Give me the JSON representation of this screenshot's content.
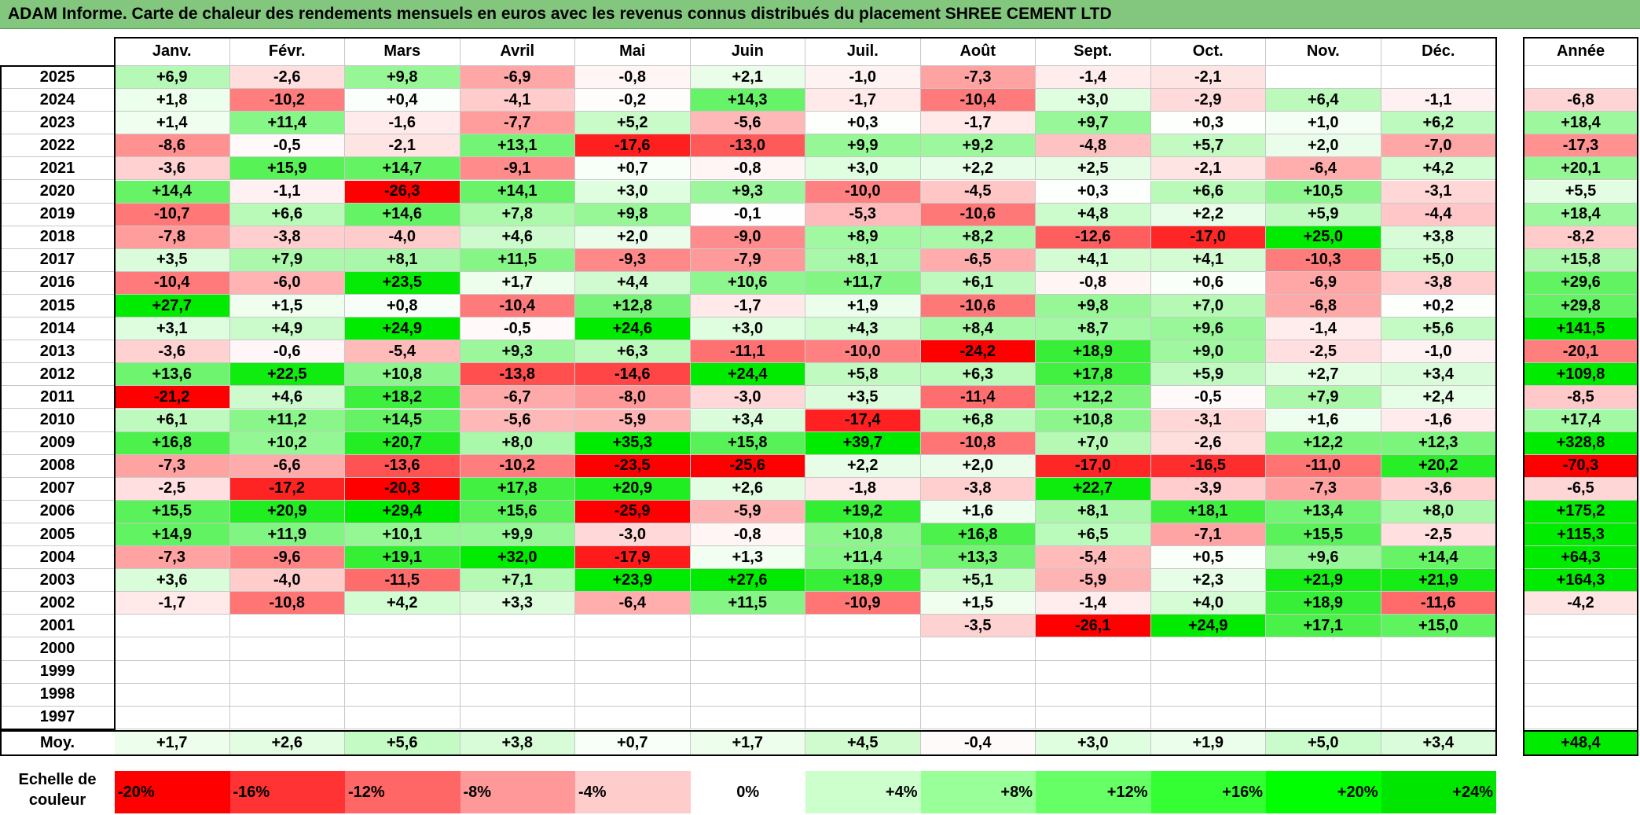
{
  "title": "ADAM Informe. Carte de chaleur des rendements mensuels en euros avec les revenus connus distribués du placement SHREE CEMENT LTD",
  "chart_data": {
    "type": "heatmap",
    "title": "ADAM Informe. Carte de chaleur des rendements mensuels en euros avec les revenus connus distribués du placement SHREE CEMENT LTD",
    "columns": [
      "Janv.",
      "Févr.",
      "Mars",
      "Avril",
      "Mai",
      "Juin",
      "Juil.",
      "Août",
      "Sept.",
      "Oct.",
      "Nov.",
      "Déc."
    ],
    "year_column_label": "Année",
    "rows": [
      {
        "year": "2025",
        "values": [
          "+6,9",
          "-2,6",
          "+9,8",
          "-6,9",
          "-0,8",
          "+2,1",
          "-1,0",
          "-7,3",
          "-1,4",
          "-2,1",
          "",
          ""
        ],
        "annual": ""
      },
      {
        "year": "2024",
        "values": [
          "+1,8",
          "-10,2",
          "+0,4",
          "-4,1",
          "-0,2",
          "+14,3",
          "-1,7",
          "-10,4",
          "+3,0",
          "-2,9",
          "+6,4",
          "-1,1"
        ],
        "annual": "-6,8"
      },
      {
        "year": "2023",
        "values": [
          "+1,4",
          "+11,4",
          "-1,6",
          "-7,7",
          "+5,2",
          "-5,6",
          "+0,3",
          "-1,7",
          "+9,7",
          "+0,3",
          "+1,0",
          "+6,2"
        ],
        "annual": "+18,4"
      },
      {
        "year": "2022",
        "values": [
          "-8,6",
          "-0,5",
          "-2,1",
          "+13,1",
          "-17,6",
          "-13,0",
          "+9,9",
          "+9,2",
          "-4,8",
          "+5,7",
          "+2,0",
          "-7,0"
        ],
        "annual": "-17,3"
      },
      {
        "year": "2021",
        "values": [
          "-3,6",
          "+15,9",
          "+14,7",
          "-9,1",
          "+0,7",
          "-0,8",
          "+3,0",
          "+2,2",
          "+2,5",
          "-2,1",
          "-6,4",
          "+4,2"
        ],
        "annual": "+20,1"
      },
      {
        "year": "2020",
        "values": [
          "+14,4",
          "-1,1",
          "-26,3",
          "+14,1",
          "+3,0",
          "+9,3",
          "-10,0",
          "-4,5",
          "+0,3",
          "+6,6",
          "+10,5",
          "-3,1"
        ],
        "annual": "+5,5"
      },
      {
        "year": "2019",
        "values": [
          "-10,7",
          "+6,6",
          "+14,6",
          "+7,8",
          "+9,8",
          "-0,1",
          "-5,3",
          "-10,6",
          "+4,8",
          "+2,2",
          "+5,9",
          "-4,4"
        ],
        "annual": "+18,4"
      },
      {
        "year": "2018",
        "values": [
          "-7,8",
          "-3,8",
          "-4,0",
          "+4,6",
          "+2,0",
          "-9,0",
          "+8,9",
          "+8,2",
          "-12,6",
          "-17,0",
          "+25,0",
          "+3,8"
        ],
        "annual": "-8,2"
      },
      {
        "year": "2017",
        "values": [
          "+3,5",
          "+7,9",
          "+8,1",
          "+11,5",
          "-9,3",
          "-7,9",
          "+8,1",
          "-6,5",
          "+4,1",
          "+4,1",
          "-10,3",
          "+5,0"
        ],
        "annual": "+15,8"
      },
      {
        "year": "2016",
        "values": [
          "-10,4",
          "-6,0",
          "+23,5",
          "+1,7",
          "+4,4",
          "+10,6",
          "+11,7",
          "+6,1",
          "-0,8",
          "+0,6",
          "-6,9",
          "-3,8"
        ],
        "annual": "+29,6"
      },
      {
        "year": "2015",
        "values": [
          "+27,7",
          "+1,5",
          "+0,8",
          "-10,4",
          "+12,8",
          "-1,7",
          "+1,9",
          "-10,6",
          "+9,8",
          "+7,0",
          "-6,8",
          "+0,2"
        ],
        "annual": "+29,8"
      },
      {
        "year": "2014",
        "values": [
          "+3,1",
          "+4,9",
          "+24,9",
          "-0,5",
          "+24,6",
          "+3,0",
          "+4,3",
          "+8,4",
          "+8,7",
          "+9,6",
          "-1,4",
          "+5,6"
        ],
        "annual": "+141,5"
      },
      {
        "year": "2013",
        "values": [
          "-3,6",
          "-0,6",
          "-5,4",
          "+9,3",
          "+6,3",
          "-11,1",
          "-10,0",
          "-24,2",
          "+18,9",
          "+9,0",
          "-2,5",
          "-1,0"
        ],
        "annual": "-20,1"
      },
      {
        "year": "2012",
        "values": [
          "+13,6",
          "+22,5",
          "+10,8",
          "-13,8",
          "-14,6",
          "+24,4",
          "+5,8",
          "+6,3",
          "+17,8",
          "+5,9",
          "+2,7",
          "+3,4"
        ],
        "annual": "+109,8"
      },
      {
        "year": "2011",
        "values": [
          "-21,2",
          "+4,6",
          "+18,2",
          "-6,7",
          "-8,0",
          "-3,0",
          "+3,5",
          "-11,4",
          "+12,2",
          "-0,5",
          "+7,9",
          "+2,4"
        ],
        "annual": "-8,5"
      },
      {
        "year": "2010",
        "values": [
          "+6,1",
          "+11,2",
          "+14,5",
          "-5,6",
          "-5,9",
          "+3,4",
          "-17,4",
          "+6,8",
          "+10,8",
          "-3,1",
          "+1,6",
          "-1,6"
        ],
        "annual": "+17,4"
      },
      {
        "year": "2009",
        "values": [
          "+16,8",
          "+10,2",
          "+20,7",
          "+8,0",
          "+35,3",
          "+15,8",
          "+39,7",
          "-10,8",
          "+7,0",
          "-2,6",
          "+12,2",
          "+12,3"
        ],
        "annual": "+328,8"
      },
      {
        "year": "2008",
        "values": [
          "-7,3",
          "-6,6",
          "-13,6",
          "-10,2",
          "-23,5",
          "-25,6",
          "+2,2",
          "+2,0",
          "-17,0",
          "-16,5",
          "-11,0",
          "+20,2"
        ],
        "annual": "-70,3"
      },
      {
        "year": "2007",
        "values": [
          "-2,5",
          "-17,2",
          "-20,3",
          "+17,8",
          "+20,9",
          "+2,6",
          "-1,8",
          "-3,8",
          "+22,7",
          "-3,9",
          "-7,3",
          "-3,6"
        ],
        "annual": "-6,5"
      },
      {
        "year": "2006",
        "values": [
          "+15,5",
          "+20,9",
          "+29,4",
          "+15,6",
          "-25,9",
          "-5,9",
          "+19,2",
          "+1,6",
          "+8,1",
          "+18,1",
          "+13,4",
          "+8,0"
        ],
        "annual": "+175,2"
      },
      {
        "year": "2005",
        "values": [
          "+14,9",
          "+11,9",
          "+10,1",
          "+9,9",
          "-3,0",
          "-0,8",
          "+10,8",
          "+16,8",
          "+6,5",
          "-7,1",
          "+15,5",
          "-2,5"
        ],
        "annual": "+115,3"
      },
      {
        "year": "2004",
        "values": [
          "-7,3",
          "-9,6",
          "+19,1",
          "+32,0",
          "-17,9",
          "+1,3",
          "+11,4",
          "+13,3",
          "-5,4",
          "+0,5",
          "+9,6",
          "+14,4"
        ],
        "annual": "+64,3"
      },
      {
        "year": "2003",
        "values": [
          "+3,6",
          "-4,0",
          "-11,5",
          "+7,1",
          "+23,9",
          "+27,6",
          "+18,9",
          "+5,1",
          "-5,9",
          "+2,3",
          "+21,9",
          "+21,9"
        ],
        "annual": "+164,3"
      },
      {
        "year": "2002",
        "values": [
          "-1,7",
          "-10,8",
          "+4,2",
          "+3,3",
          "-6,4",
          "+11,5",
          "-10,9",
          "+1,5",
          "-1,4",
          "+4,0",
          "+18,9",
          "-11,6"
        ],
        "annual": "-4,2"
      },
      {
        "year": "2001",
        "values": [
          "",
          "",
          "",
          "",
          "",
          "",
          "",
          "-3,5",
          "-26,1",
          "+24,9",
          "+17,1",
          "+15,0"
        ],
        "annual": ""
      },
      {
        "year": "2000",
        "values": [
          "",
          "",
          "",
          "",
          "",
          "",
          "",
          "",
          "",
          "",
          "",
          ""
        ],
        "annual": ""
      },
      {
        "year": "1999",
        "values": [
          "",
          "",
          "",
          "",
          "",
          "",
          "",
          "",
          "",
          "",
          "",
          ""
        ],
        "annual": ""
      },
      {
        "year": "1998",
        "values": [
          "",
          "",
          "",
          "",
          "",
          "",
          "",
          "",
          "",
          "",
          "",
          ""
        ],
        "annual": ""
      },
      {
        "year": "1997",
        "values": [
          "",
          "",
          "",
          "",
          "",
          "",
          "",
          "",
          "",
          "",
          "",
          ""
        ],
        "annual": ""
      }
    ],
    "average_row": {
      "label": "Moy.",
      "values": [
        "+1,7",
        "+2,6",
        "+5,6",
        "+3,8",
        "+0,7",
        "+1,7",
        "+4,5",
        "-0,4",
        "+3,0",
        "+1,9",
        "+5,0",
        "+3,4"
      ],
      "annual": "+48,4"
    },
    "color_scale": {
      "title": "Echelle de couleur",
      "stops": [
        {
          "label": "-20%",
          "value": -20,
          "color": "#ff0000"
        },
        {
          "label": "-16%",
          "value": -16,
          "color": "#ff3333"
        },
        {
          "label": "-12%",
          "value": -12,
          "color": "#ff6666"
        },
        {
          "label": "-8%",
          "value": -8,
          "color": "#ff9999"
        },
        {
          "label": "-4%",
          "value": -4,
          "color": "#ffcccc"
        },
        {
          "label": "0%",
          "value": 0,
          "color": "#ffffff"
        },
        {
          "label": "+4%",
          "value": 4,
          "color": "#ccffcc"
        },
        {
          "label": "+8%",
          "value": 8,
          "color": "#99ff99"
        },
        {
          "label": "+12%",
          "value": 12,
          "color": "#66ff66"
        },
        {
          "label": "+16%",
          "value": 16,
          "color": "#33ff33"
        },
        {
          "label": "+20%",
          "value": 20,
          "color": "#00ff00"
        },
        {
          "label": "+24%",
          "value": 24,
          "color": "#00e600"
        }
      ]
    }
  }
}
